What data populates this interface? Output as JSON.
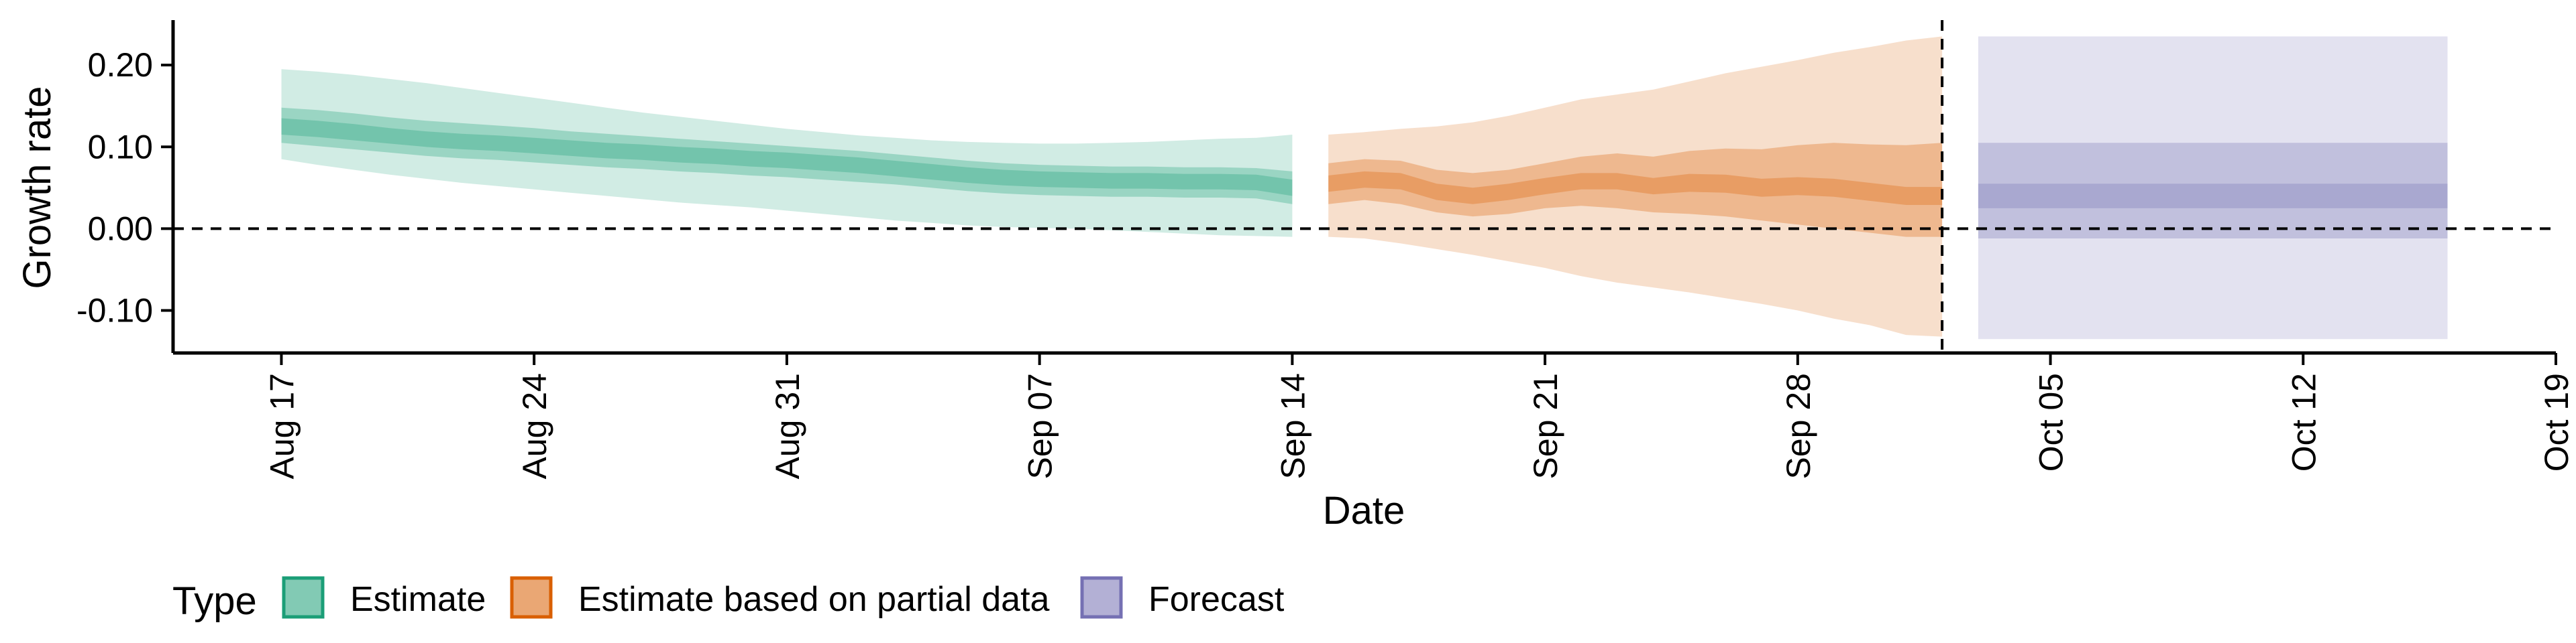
{
  "chart_data": {
    "type": "area",
    "ylabel": "Growth rate",
    "xlabel": "Date",
    "x_ticks": [
      "Aug 17",
      "Aug 24",
      "Aug 31",
      "Sep 07",
      "Sep 14",
      "Sep 21",
      "Sep 28",
      "Oct 05",
      "Oct 12",
      "Oct 19"
    ],
    "x_tick_dates": [
      "2020-08-17",
      "2020-08-24",
      "2020-08-31",
      "2020-09-07",
      "2020-09-14",
      "2020-09-21",
      "2020-09-28",
      "2020-10-05",
      "2020-10-12",
      "2020-10-19"
    ],
    "xlim": [
      "2020-08-14",
      "2020-10-19"
    ],
    "y_ticks": [
      0.2,
      0.1,
      0.0,
      -0.1
    ],
    "y_tick_labels": [
      "0.20",
      "0.10",
      "0.00",
      "-0.10"
    ],
    "ylim": [
      -0.152,
      0.255
    ],
    "reference_lines": [
      {
        "axis": "y",
        "value": 0.0,
        "style": "dashed"
      },
      {
        "axis": "x",
        "value": "2020-10-02",
        "style": "dashed"
      }
    ],
    "legend": {
      "title": "Type",
      "position": "bottom-left",
      "entries": [
        "Estimate",
        "Estimate based on partial data",
        "Forecast"
      ]
    },
    "series": [
      {
        "name": "Estimate",
        "color": "#1b9e77",
        "x": [
          "2020-08-17",
          "2020-08-18",
          "2020-08-19",
          "2020-08-20",
          "2020-08-21",
          "2020-08-22",
          "2020-08-23",
          "2020-08-24",
          "2020-08-25",
          "2020-08-26",
          "2020-08-27",
          "2020-08-28",
          "2020-08-29",
          "2020-08-30",
          "2020-08-31",
          "2020-09-01",
          "2020-09-02",
          "2020-09-03",
          "2020-09-04",
          "2020-09-05",
          "2020-09-06",
          "2020-09-07",
          "2020-09-08",
          "2020-09-09",
          "2020-09-10",
          "2020-09-11",
          "2020-09-12",
          "2020-09-13",
          "2020-09-14"
        ],
        "median": [
          0.125,
          0.122,
          0.118,
          0.113,
          0.109,
          0.106,
          0.104,
          0.101,
          0.098,
          0.095,
          0.093,
          0.09,
          0.088,
          0.085,
          0.083,
          0.08,
          0.077,
          0.073,
          0.069,
          0.065,
          0.062,
          0.06,
          0.059,
          0.058,
          0.058,
          0.057,
          0.057,
          0.056,
          0.05
        ],
        "lower_20": [
          0.115,
          0.112,
          0.108,
          0.104,
          0.1,
          0.097,
          0.095,
          0.092,
          0.089,
          0.086,
          0.084,
          0.081,
          0.079,
          0.076,
          0.074,
          0.071,
          0.068,
          0.064,
          0.06,
          0.056,
          0.053,
          0.051,
          0.05,
          0.049,
          0.049,
          0.048,
          0.048,
          0.047,
          0.04
        ],
        "upper_20": [
          0.135,
          0.132,
          0.128,
          0.123,
          0.119,
          0.116,
          0.114,
          0.111,
          0.108,
          0.105,
          0.103,
          0.1,
          0.098,
          0.095,
          0.093,
          0.09,
          0.087,
          0.083,
          0.079,
          0.075,
          0.072,
          0.07,
          0.069,
          0.068,
          0.068,
          0.067,
          0.067,
          0.066,
          0.06
        ],
        "lower_50": [
          0.105,
          0.101,
          0.097,
          0.093,
          0.089,
          0.086,
          0.084,
          0.081,
          0.078,
          0.075,
          0.073,
          0.07,
          0.068,
          0.065,
          0.063,
          0.06,
          0.057,
          0.054,
          0.05,
          0.046,
          0.043,
          0.041,
          0.04,
          0.039,
          0.039,
          0.038,
          0.038,
          0.037,
          0.03
        ],
        "upper_50": [
          0.148,
          0.145,
          0.141,
          0.136,
          0.132,
          0.129,
          0.126,
          0.123,
          0.119,
          0.116,
          0.113,
          0.11,
          0.107,
          0.104,
          0.101,
          0.098,
          0.095,
          0.091,
          0.087,
          0.083,
          0.08,
          0.078,
          0.077,
          0.076,
          0.076,
          0.075,
          0.075,
          0.074,
          0.07
        ],
        "lower_90": [
          0.085,
          0.078,
          0.072,
          0.066,
          0.061,
          0.056,
          0.052,
          0.048,
          0.044,
          0.04,
          0.036,
          0.032,
          0.029,
          0.026,
          0.022,
          0.018,
          0.014,
          0.01,
          0.007,
          0.004,
          0.002,
          0.001,
          0.0,
          -0.002,
          -0.004,
          -0.006,
          -0.008,
          -0.009,
          -0.01
        ],
        "upper_90": [
          0.195,
          0.192,
          0.188,
          0.183,
          0.178,
          0.172,
          0.166,
          0.16,
          0.154,
          0.148,
          0.142,
          0.137,
          0.132,
          0.127,
          0.122,
          0.118,
          0.114,
          0.111,
          0.108,
          0.106,
          0.105,
          0.104,
          0.104,
          0.105,
          0.106,
          0.108,
          0.11,
          0.111,
          0.115
        ]
      },
      {
        "name": "Estimate based on partial data",
        "color": "#d95f02",
        "x": [
          "2020-09-15",
          "2020-09-16",
          "2020-09-17",
          "2020-09-18",
          "2020-09-19",
          "2020-09-20",
          "2020-09-21",
          "2020-09-22",
          "2020-09-23",
          "2020-09-24",
          "2020-09-25",
          "2020-09-26",
          "2020-09-27",
          "2020-09-28",
          "2020-09-29",
          "2020-09-30",
          "2020-10-01",
          "2020-10-02"
        ],
        "median": [
          0.055,
          0.06,
          0.058,
          0.045,
          0.04,
          0.045,
          0.052,
          0.058,
          0.058,
          0.052,
          0.056,
          0.055,
          0.05,
          0.052,
          0.05,
          0.045,
          0.04,
          0.04
        ],
        "lower_20": [
          0.045,
          0.05,
          0.048,
          0.035,
          0.03,
          0.035,
          0.042,
          0.048,
          0.048,
          0.042,
          0.045,
          0.044,
          0.039,
          0.041,
          0.039,
          0.034,
          0.029,
          0.029
        ],
        "upper_20": [
          0.065,
          0.07,
          0.068,
          0.055,
          0.05,
          0.055,
          0.062,
          0.068,
          0.068,
          0.062,
          0.067,
          0.066,
          0.061,
          0.063,
          0.061,
          0.056,
          0.051,
          0.051
        ],
        "lower_50": [
          0.03,
          0.035,
          0.03,
          0.02,
          0.015,
          0.018,
          0.025,
          0.028,
          0.025,
          0.02,
          0.018,
          0.015,
          0.01,
          0.005,
          0.0,
          -0.005,
          -0.01,
          -0.01
        ],
        "upper_50": [
          0.08,
          0.085,
          0.083,
          0.072,
          0.068,
          0.072,
          0.08,
          0.088,
          0.092,
          0.088,
          0.095,
          0.098,
          0.097,
          0.102,
          0.105,
          0.103,
          0.102,
          0.105
        ],
        "lower_90": [
          -0.01,
          -0.012,
          -0.018,
          -0.025,
          -0.032,
          -0.04,
          -0.048,
          -0.058,
          -0.066,
          -0.072,
          -0.078,
          -0.085,
          -0.092,
          -0.1,
          -0.11,
          -0.118,
          -0.13,
          -0.132
        ],
        "upper_90": [
          0.115,
          0.118,
          0.122,
          0.125,
          0.13,
          0.138,
          0.148,
          0.158,
          0.164,
          0.17,
          0.18,
          0.19,
          0.198,
          0.206,
          0.215,
          0.222,
          0.23,
          0.235
        ]
      },
      {
        "name": "Forecast",
        "color": "#7570b3",
        "x": [
          "2020-10-03",
          "2020-10-16"
        ],
        "median": [
          0.04,
          0.04
        ],
        "lower_20": [
          0.025,
          0.025
        ],
        "upper_20": [
          0.055,
          0.055
        ],
        "lower_50": [
          -0.012,
          -0.012
        ],
        "upper_50": [
          0.105,
          0.105
        ],
        "lower_90": [
          -0.135,
          -0.135
        ],
        "upper_90": [
          0.235,
          0.235
        ]
      }
    ]
  }
}
